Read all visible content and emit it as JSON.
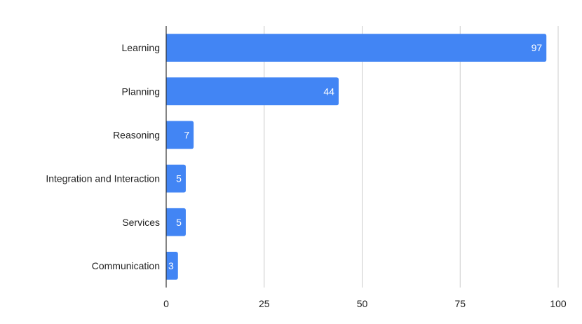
{
  "chart_data": {
    "type": "bar",
    "orientation": "horizontal",
    "title": "",
    "xlabel": "",
    "ylabel": "",
    "categories": [
      "Learning",
      "Planning",
      "Reasoning",
      "Integration and Interaction",
      "Services",
      "Communication"
    ],
    "values": [
      97,
      44,
      7,
      5,
      5,
      3
    ],
    "xlim": [
      0,
      100
    ],
    "xticks": [
      0,
      25,
      50,
      75,
      100
    ],
    "grid": "vertical",
    "legend": "none",
    "data_labels": "inside-end",
    "colors": {
      "bar": "#4285f4",
      "grid": "#cccccc",
      "axis": "#333333"
    }
  }
}
